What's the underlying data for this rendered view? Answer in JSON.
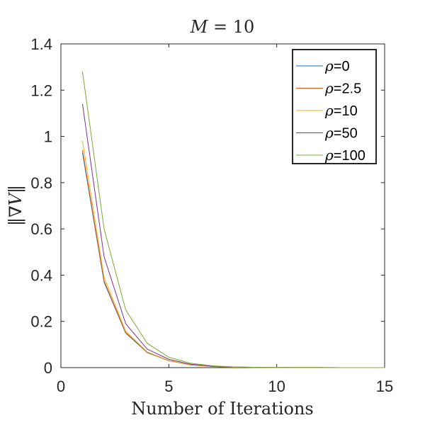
{
  "chart_data": {
    "type": "line",
    "title": "M = 10",
    "title_parts": {
      "var": "M",
      "rest": " = 10"
    },
    "xlabel": "Number of Iterations",
    "ylabel": "‖∇V‖",
    "xlim": [
      0,
      15
    ],
    "ylim": [
      0,
      1.4
    ],
    "xticks": [
      0,
      5,
      10,
      15
    ],
    "xtick_labels": [
      "0",
      "5",
      "10",
      "15"
    ],
    "yticks": [
      0,
      0.2,
      0.4,
      0.6,
      0.8,
      1.0,
      1.2,
      1.4
    ],
    "ytick_labels": [
      "0",
      "0.2",
      "0.4",
      "0.6",
      "0.8",
      "1",
      "1.2",
      "1.4"
    ],
    "grid": false,
    "legend_position": "top-right",
    "x": [
      1,
      2,
      3,
      4,
      5,
      6,
      7,
      8,
      9,
      10,
      11,
      12,
      13,
      14,
      15
    ],
    "series": [
      {
        "name": "ρ=0",
        "legend_value": "=0",
        "color": "#0072BD",
        "values": [
          0.93,
          0.37,
          0.15,
          0.065,
          0.03,
          0.012,
          0.005,
          0.002,
          0.001,
          0.0005,
          0.0003,
          0.0002,
          0.0001,
          0.0001,
          0.0001
        ]
      },
      {
        "name": "ρ=2.5",
        "legend_value": "=2.5",
        "color": "#D95319",
        "values": [
          0.94,
          0.375,
          0.152,
          0.066,
          0.03,
          0.012,
          0.005,
          0.002,
          0.001,
          0.0005,
          0.0003,
          0.0002,
          0.0001,
          0.0001,
          0.0001
        ]
      },
      {
        "name": "ρ=10",
        "legend_value": "=10",
        "color": "#EDB120",
        "values": [
          0.98,
          0.39,
          0.158,
          0.068,
          0.031,
          0.013,
          0.005,
          0.002,
          0.001,
          0.0005,
          0.0003,
          0.0002,
          0.0001,
          0.0001,
          0.0001
        ]
      },
      {
        "name": "ρ=50",
        "legend_value": "=50",
        "color": "#7E2F8E",
        "values": [
          1.14,
          0.48,
          0.19,
          0.08,
          0.036,
          0.015,
          0.006,
          0.003,
          0.0012,
          0.0006,
          0.0003,
          0.0002,
          0.0001,
          0.0001,
          0.0001
        ]
      },
      {
        "name": "ρ=100",
        "legend_value": "=100",
        "color": "#77AC30",
        "values": [
          1.28,
          0.6,
          0.25,
          0.105,
          0.045,
          0.019,
          0.008,
          0.003,
          0.0015,
          0.0007,
          0.0004,
          0.0002,
          0.0001,
          0.0001,
          0.0001
        ]
      }
    ]
  }
}
